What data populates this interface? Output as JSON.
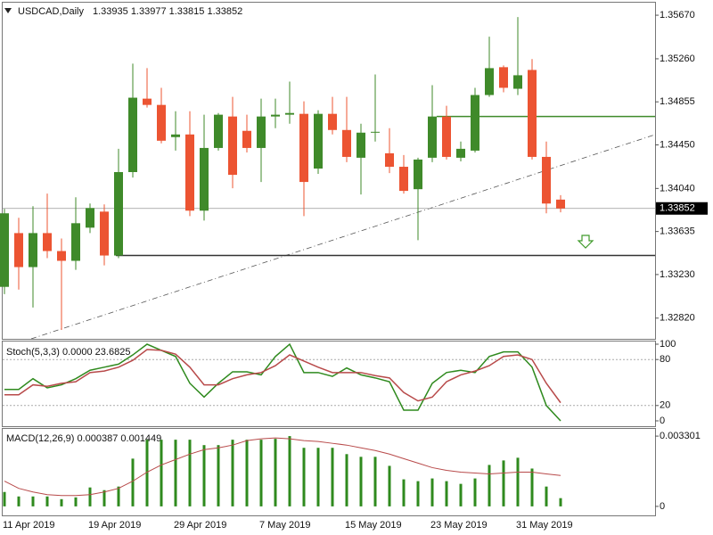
{
  "chart_data": [
    {
      "type": "candlestick",
      "title": "USDCAD,Daily",
      "header": "1.33935 1.33977 1.33815 1.33852",
      "categories": [
        "11 Apr 2019",
        null,
        null,
        null,
        null,
        null,
        "19 Apr 2019",
        null,
        null,
        null,
        null,
        null,
        "29 Apr 2019",
        null,
        null,
        null,
        null,
        null,
        "7 May 2019",
        null,
        null,
        null,
        null,
        null,
        "15 May 2019",
        null,
        null,
        null,
        null,
        null,
        "23 May 2019",
        null,
        null,
        null,
        null,
        null,
        "31 May 2019",
        null,
        null,
        null
      ],
      "open": [
        1.33114,
        1.3362,
        1.333,
        1.3362,
        1.33451,
        1.33359,
        1.33671,
        1.33822,
        1.33409,
        1.34194,
        1.34885,
        1.34826,
        1.34523,
        1.34548,
        1.33831,
        1.34421,
        1.34717,
        1.34582,
        1.34421,
        1.34717,
        1.34734,
        1.34742,
        1.34227,
        1.34742,
        1.3459,
        1.34329,
        1.34565,
        1.34371,
        1.34244,
        1.34033,
        1.34329,
        1.34717,
        1.34329,
        1.34396,
        1.34919,
        1.35181,
        1.34978,
        1.35155,
        1.34337,
        1.33935
      ],
      "high": [
        1.33848,
        1.33764,
        1.33873,
        1.33991,
        1.33569,
        1.33957,
        1.33898,
        1.3389,
        1.34413,
        1.35214,
        1.35172,
        1.34987,
        1.34767,
        1.34767,
        1.34734,
        1.3475,
        1.34902,
        1.34734,
        1.34885,
        1.34885,
        1.35046,
        1.3486,
        1.34776,
        1.34902,
        1.34902,
        1.34649,
        1.35113,
        1.34607,
        1.34354,
        1.34329,
        1.35012,
        1.34818,
        1.34481,
        1.34987,
        1.35468,
        1.35198,
        1.35653,
        1.35257,
        1.34481,
        1.33977
      ],
      "low": [
        1.33046,
        1.33089,
        1.3292,
        1.33384,
        1.32709,
        1.33274,
        1.3362,
        1.33316,
        1.33384,
        1.34143,
        1.34801,
        1.34464,
        1.34396,
        1.3378,
        1.33738,
        1.34396,
        1.34042,
        1.34379,
        1.34101,
        1.34607,
        1.34649,
        1.3378,
        1.34177,
        1.34548,
        1.34287,
        1.33983,
        1.34481,
        1.34185,
        1.33991,
        1.33553,
        1.34287,
        1.34312,
        1.34295,
        1.34379,
        1.34902,
        1.34945,
        1.34919,
        1.34312,
        1.33806,
        1.33815
      ],
      "close": [
        1.33806,
        1.333,
        1.3362,
        1.33451,
        1.33359,
        1.33713,
        1.33856,
        1.33409,
        1.34194,
        1.34894,
        1.34826,
        1.34489,
        1.34548,
        1.33831,
        1.34421,
        1.34734,
        1.34168,
        1.34421,
        1.34717,
        1.34734,
        1.3475,
        1.34101,
        1.34742,
        1.3459,
        1.34337,
        1.34565,
        1.34573,
        1.34244,
        1.34017,
        1.34312,
        1.34717,
        1.34337,
        1.34413,
        1.34919,
        1.35172,
        1.34987,
        1.35105,
        1.34337,
        1.33898,
        1.33852
      ],
      "up_color": "#3f8a2a",
      "down_color": "#ec5432",
      "last_price": 1.33852,
      "levels": [
        {
          "value": 1.34717,
          "color": "#3f8a2a"
        },
        {
          "value": 1.33409,
          "color": "#333333"
        }
      ],
      "ylim": [
        1.32625,
        1.35788
      ],
      "yticks": [
        {
          "value": 1.3567,
          "label": "1.35670"
        },
        {
          "value": 1.3526,
          "label": "1.35260"
        },
        1.34855,
        {
          "value": 1.3445,
          "label": "1.34450"
        },
        {
          "value": 1.3404,
          "label": "1.34040"
        },
        1.33635,
        {
          "value": 1.3323,
          "label": "1.33230"
        },
        {
          "value": 1.3282,
          "label": "1.32820"
        }
      ]
    },
    {
      "type": "line",
      "title": "Stoch(5,3,3) 0.0000 23.6825",
      "series": [
        {
          "color": "#2f8a1e",
          "values": [
            41,
            41,
            55,
            43,
            47,
            55,
            66,
            70,
            74,
            86,
            100,
            92,
            84,
            49,
            31,
            49,
            64,
            64,
            60,
            84,
            100,
            63,
            63,
            58,
            69,
            60,
            56,
            51,
            14,
            14,
            49,
            63,
            66,
            63,
            84,
            90,
            90,
            70,
            20,
            0
          ]
        },
        {
          "color": "#b84a4a",
          "values": [
            34,
            34,
            47,
            45,
            49,
            51,
            63,
            65,
            70,
            79,
            93,
            92,
            87,
            70,
            47,
            47,
            55,
            60,
            63,
            72,
            86,
            78,
            70,
            63,
            63,
            63,
            59,
            56,
            37,
            26,
            31,
            51,
            60,
            65,
            72,
            84,
            86,
            80,
            49,
            23.6825
          ]
        }
      ],
      "levels": [
        80,
        20
      ],
      "ylim": [
        -7,
        103.5
      ],
      "yticks": [
        100,
        80,
        20,
        0
      ]
    },
    {
      "type": "macd",
      "title": "MACD(12,26,9) 0.000387 0.001449",
      "series": [
        {
          "color": "#2f8a1e",
          "values": [
            0.000677,
            0.000466,
            0.000466,
            0.000466,
            0.000339,
            0.000423,
            0.000889,
            0.000762,
            0.000931,
            0.002243,
            0.003132,
            0.003132,
            0.003132,
            0.003132,
            0.002878,
            0.002878,
            0.003132,
            0.003132,
            0.003132,
            0.003174,
            0.003301,
            0.002751,
            0.002751,
            0.002751,
            0.002455,
            0.002328,
            0.002328,
            0.001904,
            0.00127,
            0.001185,
            0.001312,
            0.001185,
            0.001058,
            0.001312,
            0.001947,
            0.002158,
            0.002285,
            0.001777,
            0.000931,
            0.000387
          ]
        },
        {
          "color": "#b84a4a",
          "values": [
            0.001185,
            0.000846,
            0.000677,
            0.00055,
            0.000508,
            0.000508,
            0.00055,
            0.000677,
            0.000846,
            0.001185,
            0.001608,
            0.001947,
            0.002201,
            0.002455,
            0.002666,
            0.002751,
            0.002878,
            0.003089,
            0.003174,
            0.003216,
            0.003174,
            0.003089,
            0.003047,
            0.002962,
            0.002878,
            0.002751,
            0.002624,
            0.002455,
            0.002243,
            0.002031,
            0.00182,
            0.001693,
            0.001608,
            0.001566,
            0.001524,
            0.001566,
            0.001608,
            0.001608,
            0.001524,
            0.001449
          ]
        }
      ],
      "ylim": [
        -0.000423,
        0.00364
      ],
      "yticks": [
        0.003301,
        0
      ]
    }
  ]
}
